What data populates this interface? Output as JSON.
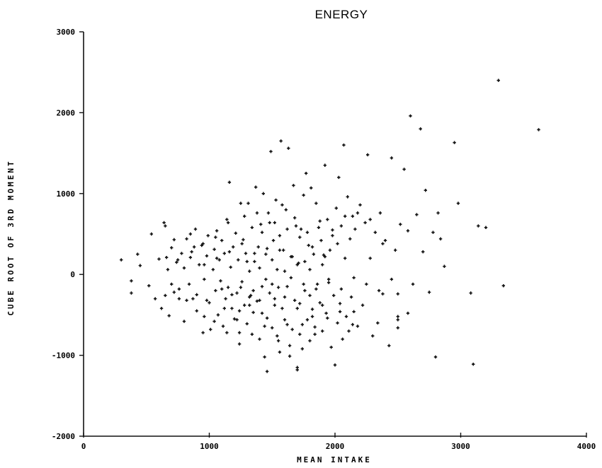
{
  "chart_data": {
    "type": "scatter",
    "title": "ENERGY",
    "xlabel": "MEAN INTAKE",
    "ylabel": "CUBE ROOT OF 3RD MOMENT",
    "xlim": [
      0,
      4000
    ],
    "ylim": [
      -2000,
      3000
    ],
    "xticks": [
      {
        "value": 0,
        "label": "0"
      },
      {
        "value": 1000,
        "label": "1000"
      },
      {
        "value": 2000,
        "label": "2000"
      },
      {
        "value": 3000,
        "label": "3000"
      },
      {
        "value": 4000,
        "label": "4000"
      }
    ],
    "yticks": [
      {
        "value": -2000,
        "label": "-2000"
      },
      {
        "value": -1000,
        "label": "-1000"
      },
      {
        "value": 0,
        "label": "0"
      },
      {
        "value": 1000,
        "label": "1000"
      },
      {
        "value": 2000,
        "label": "2000"
      },
      {
        "value": 3000,
        "label": "3000"
      }
    ],
    "grid": false,
    "marker_color": "#111111",
    "points": [
      [
        300,
        180
      ],
      [
        380,
        -80
      ],
      [
        380,
        -230
      ],
      [
        430,
        250
      ],
      [
        450,
        110
      ],
      [
        520,
        -140
      ],
      [
        540,
        500
      ],
      [
        570,
        -300
      ],
      [
        600,
        190
      ],
      [
        620,
        -420
      ],
      [
        640,
        640
      ],
      [
        650,
        600
      ],
      [
        660,
        210
      ],
      [
        670,
        60
      ],
      [
        680,
        -510
      ],
      [
        700,
        330
      ],
      [
        720,
        -220
      ],
      [
        740,
        150
      ],
      [
        760,
        -300
      ],
      [
        780,
        260
      ],
      [
        800,
        -580
      ],
      [
        800,
        80
      ],
      [
        820,
        440
      ],
      [
        840,
        -120
      ],
      [
        850,
        210
      ],
      [
        870,
        -300
      ],
      [
        890,
        560
      ],
      [
        900,
        -450
      ],
      [
        920,
        120
      ],
      [
        940,
        360
      ],
      [
        950,
        -720
      ],
      [
        960,
        -60
      ],
      [
        980,
        230
      ],
      [
        990,
        480
      ],
      [
        1000,
        -350
      ],
      [
        1010,
        -680
      ],
      [
        1030,
        60
      ],
      [
        1040,
        310
      ],
      [
        1050,
        -200
      ],
      [
        1060,
        540
      ],
      [
        1070,
        -500
      ],
      [
        1080,
        180
      ],
      [
        1090,
        -80
      ],
      [
        1100,
        420
      ],
      [
        1110,
        -640
      ],
      [
        1120,
        260
      ],
      [
        1130,
        -300
      ],
      [
        1140,
        680
      ],
      [
        1150,
        -160
      ],
      [
        1160,
        1140
      ],
      [
        1170,
        90
      ],
      [
        1180,
        -420
      ],
      [
        1190,
        340
      ],
      [
        1200,
        -550
      ],
      [
        1210,
        510
      ],
      [
        1220,
        -230
      ],
      [
        1230,
        180
      ],
      [
        1240,
        -720
      ],
      [
        1250,
        880
      ],
      [
        1260,
        -90
      ],
      [
        1270,
        430
      ],
      [
        1280,
        -380
      ],
      [
        1290,
        260
      ],
      [
        1300,
        -610
      ],
      [
        1310,
        880
      ],
      [
        1320,
        40
      ],
      [
        1330,
        -260
      ],
      [
        1340,
        580
      ],
      [
        1350,
        -470
      ],
      [
        1360,
        160
      ],
      [
        1370,
        1080
      ],
      [
        1380,
        -330
      ],
      [
        1390,
        340
      ],
      [
        1400,
        -800
      ],
      [
        1410,
        620
      ],
      [
        1420,
        -150
      ],
      [
        1430,
        1000
      ],
      [
        1440,
        -1020
      ],
      [
        1450,
        250
      ],
      [
        1460,
        -540
      ],
      [
        1470,
        760
      ],
      [
        1480,
        -230
      ],
      [
        1490,
        1520
      ],
      [
        1500,
        -660
      ],
      [
        1510,
        420
      ],
      [
        1520,
        -380
      ],
      [
        1530,
        920
      ],
      [
        1540,
        60
      ],
      [
        1550,
        -820
      ],
      [
        1560,
        480
      ],
      [
        1570,
        1650
      ],
      [
        1580,
        -420
      ],
      [
        1590,
        300
      ],
      [
        1600,
        -560
      ],
      [
        1610,
        800
      ],
      [
        1620,
        -150
      ],
      [
        1630,
        1560
      ],
      [
        1640,
        -1010
      ],
      [
        1650,
        220
      ],
      [
        1660,
        -680
      ],
      [
        1670,
        1100
      ],
      [
        1680,
        -320
      ],
      [
        1690,
        600
      ],
      [
        1700,
        -1150
      ],
      [
        1710,
        140
      ],
      [
        1720,
        -740
      ],
      [
        1730,
        560
      ],
      [
        1740,
        -920
      ],
      [
        1750,
        980
      ],
      [
        1760,
        -200
      ],
      [
        1770,
        1250
      ],
      [
        1780,
        -560
      ],
      [
        1790,
        360
      ],
      [
        1800,
        -820
      ],
      [
        1810,
        1070
      ],
      [
        1820,
        -430
      ],
      [
        1830,
        250
      ],
      [
        1840,
        -650
      ],
      [
        1850,
        880
      ],
      [
        1860,
        -120
      ],
      [
        1870,
        580
      ],
      [
        1880,
        -350
      ],
      [
        1890,
        420
      ],
      [
        1900,
        -700
      ],
      [
        1910,
        240
      ],
      [
        1920,
        1350
      ],
      [
        1930,
        -480
      ],
      [
        1940,
        680
      ],
      [
        1950,
        -100
      ],
      [
        1960,
        300
      ],
      [
        1970,
        -900
      ],
      [
        1980,
        550
      ],
      [
        1990,
        -260
      ],
      [
        2000,
        -1120
      ],
      [
        2010,
        820
      ],
      [
        2020,
        -600
      ],
      [
        2030,
        1200
      ],
      [
        2040,
        -360
      ],
      [
        2050,
        600
      ],
      [
        2060,
        -800
      ],
      [
        2070,
        1600
      ],
      [
        2080,
        200
      ],
      [
        2090,
        -520
      ],
      [
        2100,
        960
      ],
      [
        2110,
        -700
      ],
      [
        2120,
        440
      ],
      [
        2130,
        -280
      ],
      [
        2140,
        720
      ],
      [
        2150,
        -460
      ],
      [
        2160,
        560
      ],
      [
        2180,
        -640
      ],
      [
        2200,
        860
      ],
      [
        2220,
        -380
      ],
      [
        2240,
        640
      ],
      [
        2260,
        1480
      ],
      [
        2280,
        200
      ],
      [
        2300,
        -760
      ],
      [
        2320,
        520
      ],
      [
        2340,
        -600
      ],
      [
        2360,
        760
      ],
      [
        2380,
        -240
      ],
      [
        2400,
        420
      ],
      [
        2430,
        -880
      ],
      [
        2450,
        1440
      ],
      [
        2480,
        300
      ],
      [
        2500,
        -560
      ],
      [
        2500,
        -240
      ],
      [
        2520,
        620
      ],
      [
        2550,
        1300
      ],
      [
        2580,
        540
      ],
      [
        2600,
        1960
      ],
      [
        2620,
        -120
      ],
      [
        2650,
        740
      ],
      [
        2680,
        1800
      ],
      [
        2700,
        280
      ],
      [
        2720,
        1040
      ],
      [
        2750,
        -220
      ],
      [
        2780,
        520
      ],
      [
        2800,
        -1020
      ],
      [
        2820,
        760
      ],
      [
        2840,
        440
      ],
      [
        2870,
        100
      ],
      [
        2950,
        1630
      ],
      [
        2980,
        880
      ],
      [
        3080,
        -230
      ],
      [
        3100,
        -1110
      ],
      [
        3140,
        600
      ],
      [
        3200,
        580
      ],
      [
        3300,
        2400
      ],
      [
        3340,
        -140
      ],
      [
        3620,
        1790
      ],
      [
        1460,
        -1200
      ],
      [
        1560,
        -960
      ],
      [
        1700,
        -1180
      ],
      [
        1240,
        -450
      ],
      [
        1320,
        -280
      ],
      [
        1180,
        -250
      ],
      [
        1100,
        -180
      ],
      [
        980,
        -320
      ],
      [
        900,
        -250
      ],
      [
        1400,
        -320
      ],
      [
        1500,
        -120
      ],
      [
        1600,
        -280
      ],
      [
        1700,
        -420
      ],
      [
        1800,
        -260
      ],
      [
        1900,
        -380
      ],
      [
        1260,
        380
      ],
      [
        1360,
        260
      ],
      [
        1460,
        320
      ],
      [
        1560,
        300
      ],
      [
        1660,
        220
      ],
      [
        1760,
        160
      ],
      [
        1160,
        280
      ],
      [
        1060,
        200
      ],
      [
        960,
        120
      ],
      [
        860,
        280
      ],
      [
        1420,
        520
      ],
      [
        1520,
        640
      ],
      [
        1620,
        560
      ],
      [
        1720,
        460
      ],
      [
        1820,
        340
      ],
      [
        1920,
        220
      ],
      [
        2020,
        380
      ],
      [
        1040,
        -580
      ],
      [
        1140,
        -720
      ],
      [
        1240,
        -860
      ],
      [
        1340,
        -740
      ],
      [
        1440,
        -640
      ],
      [
        1540,
        -760
      ],
      [
        1640,
        -880
      ],
      [
        1740,
        -620
      ],
      [
        1840,
        -740
      ],
      [
        1940,
        -540
      ],
      [
        2040,
        -460
      ],
      [
        2140,
        -620
      ],
      [
        720,
        430
      ],
      [
        760,
        -180
      ],
      [
        820,
        -320
      ],
      [
        880,
        340
      ],
      [
        960,
        -520
      ],
      [
        1120,
        -420
      ],
      [
        1220,
        -560
      ],
      [
        1320,
        -380
      ],
      [
        1420,
        -480
      ],
      [
        1520,
        -300
      ],
      [
        1620,
        -620
      ],
      [
        1720,
        -360
      ],
      [
        1820,
        -520
      ],
      [
        1280,
        720
      ],
      [
        1380,
        760
      ],
      [
        1480,
        640
      ],
      [
        1580,
        860
      ],
      [
        1680,
        700
      ],
      [
        1780,
        520
      ],
      [
        1880,
        660
      ],
      [
        1980,
        480
      ],
      [
        2080,
        720
      ],
      [
        2180,
        760
      ],
      [
        2280,
        680
      ],
      [
        2380,
        380
      ],
      [
        1150,
        640
      ],
      [
        1050,
        460
      ],
      [
        950,
        380
      ],
      [
        850,
        500
      ],
      [
        750,
        180
      ],
      [
        650,
        -260
      ],
      [
        700,
        -120
      ],
      [
        1300,
        160
      ],
      [
        1400,
        80
      ],
      [
        1500,
        180
      ],
      [
        1600,
        40
      ],
      [
        1700,
        120
      ],
      [
        1800,
        60
      ],
      [
        1900,
        120
      ],
      [
        1250,
        -160
      ],
      [
        1350,
        -200
      ],
      [
        1450,
        -60
      ],
      [
        1550,
        -160
      ],
      [
        1650,
        -40
      ],
      [
        1750,
        -120
      ],
      [
        1850,
        -180
      ],
      [
        1950,
        -60
      ],
      [
        2050,
        -180
      ],
      [
        2150,
        -40
      ],
      [
        2250,
        -120
      ],
      [
        2350,
        -200
      ],
      [
        2450,
        -60
      ],
      [
        2500,
        -660
      ],
      [
        2500,
        -520
      ],
      [
        2580,
        -480
      ]
    ]
  }
}
